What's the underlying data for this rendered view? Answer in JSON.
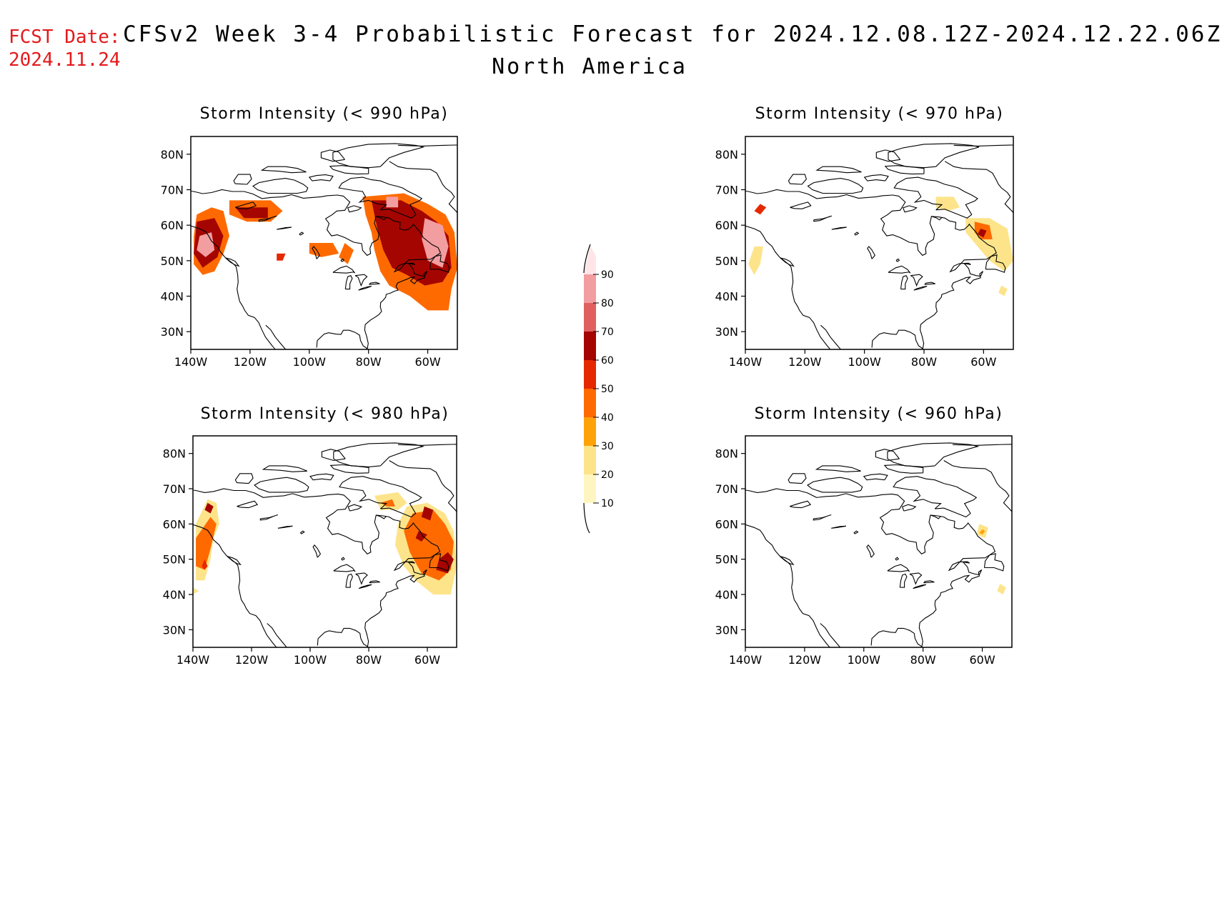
{
  "header": {
    "fcst_label": "FCST Date:",
    "fcst_date": "2024.11.24",
    "title": "CFSv2 Week 3-4 Probabilistic Forecast for 2024.12.08.12Z-2024.12.22.06Z",
    "subtitle": "North America"
  },
  "colors": {
    "10": "#fff5c0",
    "20": "#fde48a",
    "30": "#fea20a",
    "40": "#fe6a00",
    "50": "#e52800",
    "60": "#a50500",
    "70": "#e06060",
    "80": "#f29da0",
    "90": "#ffe4e8"
  },
  "colorbar": {
    "levels": [
      "10",
      "20",
      "30",
      "40",
      "50",
      "60",
      "70",
      "80",
      "90"
    ]
  },
  "axis": {
    "lon_ticks": [
      "140W",
      "120W",
      "100W",
      "80W",
      "60W"
    ],
    "lat_ticks": [
      "80N",
      "70N",
      "60N",
      "50N",
      "40N",
      "30N"
    ]
  },
  "panels": [
    {
      "title": "Storm Intensity (< 990 hPa)",
      "prob_regions": [
        {
          "level": 40,
          "points": [
            [
              -138,
              63
            ],
            [
              -133,
              65
            ],
            [
              -129,
              64
            ],
            [
              -127,
              57
            ],
            [
              -129,
              52
            ],
            [
              -132,
              47
            ],
            [
              -136,
              46
            ],
            [
              -139,
              49
            ],
            [
              -139,
              57
            ]
          ]
        },
        {
          "level": 60,
          "points": [
            [
              -138,
              61
            ],
            [
              -132,
              62
            ],
            [
              -129,
              57
            ],
            [
              -131,
              51
            ],
            [
              -136,
              48
            ],
            [
              -139,
              52
            ]
          ]
        },
        {
          "level": 80,
          "points": [
            [
              -137,
              57
            ],
            [
              -133,
              58
            ],
            [
              -132,
              53
            ],
            [
              -135,
              51
            ],
            [
              -138,
              53
            ]
          ]
        },
        {
          "level": 40,
          "points": [
            [
              -127,
              67
            ],
            [
              -113,
              67
            ],
            [
              -109,
              64
            ],
            [
              -113,
              61
            ],
            [
              -121,
              61
            ],
            [
              -127,
              63
            ]
          ]
        },
        {
          "level": 60,
          "points": [
            [
              -125,
              65
            ],
            [
              -114,
              65
            ],
            [
              -114,
              62
            ],
            [
              -122,
              62
            ]
          ]
        },
        {
          "level": 50,
          "points": [
            [
              -111,
              52
            ],
            [
              -108,
              52
            ],
            [
              -109,
              50
            ],
            [
              -111,
              50
            ]
          ]
        },
        {
          "level": 40,
          "points": [
            [
              -100,
              55
            ],
            [
              -92,
              55
            ],
            [
              -90,
              52
            ],
            [
              -96,
              51
            ],
            [
              -100,
              52
            ]
          ]
        },
        {
          "level": 40,
          "points": [
            [
              -88,
              55
            ],
            [
              -85,
              53
            ],
            [
              -87,
              49
            ],
            [
              -90,
              51
            ]
          ]
        },
        {
          "level": 40,
          "points": [
            [
              -82,
              68
            ],
            [
              -68,
              69
            ],
            [
              -60,
              66
            ],
            [
              -54,
              63
            ],
            [
              -51,
              58
            ],
            [
              -50,
              48
            ],
            [
              -52,
              42
            ],
            [
              -53,
              36
            ],
            [
              -60,
              36
            ],
            [
              -66,
              40
            ],
            [
              -73,
              43
            ],
            [
              -76,
              47
            ],
            [
              -78,
              53
            ],
            [
              -79,
              58
            ],
            [
              -81,
              63
            ]
          ]
        },
        {
          "level": 60,
          "points": [
            [
              -79,
              67
            ],
            [
              -69,
              67
            ],
            [
              -62,
              64
            ],
            [
              -57,
              61
            ],
            [
              -53,
              57
            ],
            [
              -52,
              48
            ],
            [
              -55,
              44
            ],
            [
              -61,
              43
            ],
            [
              -67,
              46
            ],
            [
              -72,
              48
            ],
            [
              -75,
              53
            ],
            [
              -77,
              59
            ]
          ]
        },
        {
          "level": 80,
          "points": [
            [
              -61,
              62
            ],
            [
              -55,
              60
            ],
            [
              -53,
              54
            ],
            [
              -55,
              48
            ],
            [
              -60,
              50
            ],
            [
              -62,
              56
            ]
          ]
        },
        {
          "level": 80,
          "points": [
            [
              -74,
              68
            ],
            [
              -70,
              68
            ],
            [
              -70,
              65
            ],
            [
              -74,
              65
            ]
          ]
        }
      ]
    },
    {
      "title": "Storm Intensity (< 970 hPa)",
      "prob_regions": [
        {
          "level": 50,
          "points": [
            [
              -135,
              66
            ],
            [
              -133,
              65
            ],
            [
              -135,
              63
            ],
            [
              -137,
              64
            ]
          ]
        },
        {
          "level": 20,
          "points": [
            [
              -137,
              54
            ],
            [
              -134,
              54
            ],
            [
              -135,
              49
            ],
            [
              -137,
              46
            ],
            [
              -139,
              49
            ]
          ]
        },
        {
          "level": 20,
          "points": [
            [
              -76,
              68
            ],
            [
              -70,
              68
            ],
            [
              -68,
              65
            ],
            [
              -72,
              64
            ],
            [
              -76,
              65
            ]
          ]
        },
        {
          "level": 20,
          "points": [
            [
              -66,
              62
            ],
            [
              -58,
              62
            ],
            [
              -52,
              59
            ],
            [
              -50,
              50
            ],
            [
              -53,
              47
            ],
            [
              -58,
              50
            ],
            [
              -63,
              55
            ],
            [
              -66,
              58
            ]
          ]
        },
        {
          "level": 40,
          "points": [
            [
              -63,
              61
            ],
            [
              -58,
              60
            ],
            [
              -57,
              56
            ],
            [
              -61,
              56
            ],
            [
              -63,
              58
            ]
          ]
        },
        {
          "level": 60,
          "points": [
            [
              -61,
              59
            ],
            [
              -59,
              58.5
            ],
            [
              -60,
              56.5
            ],
            [
              -62,
              57.5
            ]
          ]
        },
        {
          "level": 20,
          "points": [
            [
              -54,
              43
            ],
            [
              -52,
              42
            ],
            [
              -53,
              40
            ],
            [
              -55,
              41
            ]
          ]
        }
      ]
    },
    {
      "title": "Storm Intensity (< 980 hPa)",
      "prob_regions": [
        {
          "level": 20,
          "points": [
            [
              -135,
              67
            ],
            [
              -132,
              66
            ],
            [
              -131,
              60
            ],
            [
              -133,
              56
            ],
            [
              -134,
              50
            ],
            [
              -136,
              44
            ],
            [
              -139,
              44
            ],
            [
              -139,
              52
            ],
            [
              -139,
              60
            ]
          ]
        },
        {
          "level": 40,
          "points": [
            [
              -134,
              62
            ],
            [
              -132,
              60
            ],
            [
              -134,
              53
            ],
            [
              -136,
              47
            ],
            [
              -139,
              48
            ],
            [
              -139,
              56
            ]
          ]
        },
        {
          "level": 50,
          "points": [
            [
              -136,
              50
            ],
            [
              -135,
              48
            ],
            [
              -136,
              47
            ],
            [
              -137,
              48
            ]
          ]
        },
        {
          "level": 60,
          "points": [
            [
              -135,
              66
            ],
            [
              -133,
              65
            ],
            [
              -134,
              63
            ],
            [
              -136,
              64
            ]
          ]
        },
        {
          "level": 20,
          "points": [
            [
              -140,
              42
            ],
            [
              -138,
              41
            ],
            [
              -140,
              40
            ]
          ]
        },
        {
          "level": 20,
          "points": [
            [
              -78,
              68
            ],
            [
              -70,
              69
            ],
            [
              -67,
              66
            ],
            [
              -70,
              64
            ],
            [
              -76,
              64
            ]
          ]
        },
        {
          "level": 40,
          "points": [
            [
              -76,
              66
            ],
            [
              -72,
              67
            ],
            [
              -71,
              65
            ],
            [
              -74,
              65
            ]
          ]
        },
        {
          "level": 20,
          "points": [
            [
              -67,
              65
            ],
            [
              -60,
              66
            ],
            [
              -54,
              63
            ],
            [
              -51,
              58
            ],
            [
              -50,
              48
            ],
            [
              -52,
              40
            ],
            [
              -58,
              40
            ],
            [
              -64,
              44
            ],
            [
              -68,
              48
            ],
            [
              -71,
              54
            ],
            [
              -70,
              60
            ]
          ]
        },
        {
          "level": 40,
          "points": [
            [
              -65,
              63
            ],
            [
              -58,
              64
            ],
            [
              -54,
              60
            ],
            [
              -51,
              55
            ],
            [
              -52,
              47
            ],
            [
              -56,
              44
            ],
            [
              -62,
              46
            ],
            [
              -66,
              52
            ],
            [
              -68,
              58
            ]
          ]
        },
        {
          "level": 60,
          "points": [
            [
              -61,
              65
            ],
            [
              -58,
              64
            ],
            [
              -59,
              61
            ],
            [
              -62,
              62
            ]
          ]
        },
        {
          "level": 60,
          "points": [
            [
              -53,
              52
            ],
            [
              -51,
              50
            ],
            [
              -53,
              46
            ],
            [
              -57,
              47
            ],
            [
              -56,
              50
            ]
          ]
        },
        {
          "level": 60,
          "points": [
            [
              -63,
              58
            ],
            [
              -60,
              57
            ],
            [
              -62,
              55
            ],
            [
              -64,
              56
            ]
          ]
        }
      ]
    },
    {
      "title": "Storm Intensity (< 960 hPa)",
      "prob_regions": [
        {
          "level": 20,
          "points": [
            [
              -61,
              60
            ],
            [
              -58,
              59
            ],
            [
              -59,
              56
            ],
            [
              -62,
              57
            ]
          ]
        },
        {
          "level": 30,
          "points": [
            [
              -60,
              58.5
            ],
            [
              -59,
              58
            ],
            [
              -60,
              57
            ],
            [
              -61,
              57.5
            ]
          ]
        },
        {
          "level": 20,
          "points": [
            [
              -54,
              43
            ],
            [
              -52,
              42
            ],
            [
              -53,
              40
            ],
            [
              -55,
              41
            ]
          ]
        }
      ]
    }
  ]
}
